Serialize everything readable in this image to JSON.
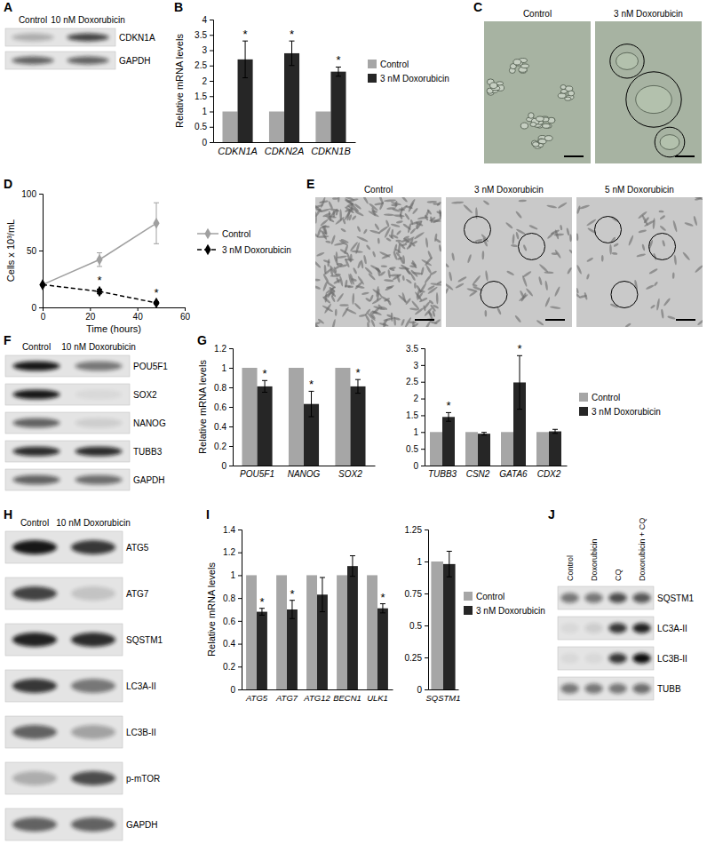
{
  "panel_letters": [
    "A",
    "B",
    "C",
    "D",
    "E",
    "F",
    "G",
    "H",
    "I",
    "J"
  ],
  "blots": {
    "A": {
      "columns": [
        "Control",
        "10 nM Doxorubicin"
      ],
      "rows": [
        {
          "label": "CDKN1A",
          "bands": [
            0.25,
            0.75
          ]
        },
        {
          "label": "GAPDH",
          "bands": [
            0.6,
            0.6
          ]
        }
      ]
    },
    "F": {
      "columns": [
        "Control",
        "10 nM Doxorubicin"
      ],
      "rows": [
        {
          "label": "POU5F1",
          "bands": [
            0.95,
            0.5
          ]
        },
        {
          "label": "SOX2",
          "bands": [
            0.95,
            0.05
          ]
        },
        {
          "label": "NANOG",
          "bands": [
            0.6,
            0.1
          ]
        },
        {
          "label": "TUBB3",
          "bands": [
            0.85,
            0.85
          ]
        },
        {
          "label": "GAPDH",
          "bands": [
            0.6,
            0.55
          ]
        }
      ]
    },
    "H": {
      "columns": [
        "Control",
        "10 nM Doxorubicin"
      ],
      "rows": [
        {
          "label": "ATG5",
          "bands": [
            0.95,
            0.8
          ]
        },
        {
          "label": "ATG7",
          "bands": [
            0.75,
            0.15
          ]
        },
        {
          "label": "SQSTM1",
          "bands": [
            0.9,
            0.85
          ]
        },
        {
          "label": "LC3A-II",
          "bands": [
            0.8,
            0.5
          ]
        },
        {
          "label": "LC3B-II",
          "bands": [
            0.6,
            0.3
          ]
        },
        {
          "label": "p-mTOR",
          "bands": [
            0.25,
            0.7
          ]
        },
        {
          "label": "GAPDH",
          "bands": [
            0.6,
            0.6
          ]
        }
      ]
    },
    "J": {
      "columns": [
        "Control",
        "Doxorubicin",
        "CQ",
        "Doxorubicin + CQ"
      ],
      "rows": [
        {
          "label": "SQSTM1",
          "bands": [
            0.5,
            0.5,
            0.7,
            0.65
          ]
        },
        {
          "label": "LC3A-II",
          "bands": [
            0.05,
            0.1,
            0.8,
            0.9
          ]
        },
        {
          "label": "LC3B-II",
          "bands": [
            0.05,
            0.05,
            0.8,
            1.0
          ]
        },
        {
          "label": "TUBB",
          "bands": [
            0.5,
            0.5,
            0.5,
            0.55
          ]
        }
      ]
    }
  },
  "micrographs": {
    "C": {
      "labels": [
        "Control",
        "3 nM Doxorubicin"
      ]
    },
    "E": {
      "labels": [
        "Control",
        "3 nM Doxorubicin",
        "5 nM Doxorubicin"
      ]
    }
  },
  "chart_data": [
    {
      "type": "bar",
      "ylabel": "Relative mRNA levels",
      "categories": [
        "CDKN1A",
        "CDKN2A",
        "CDKN1B"
      ],
      "series": [
        {
          "name": "Control",
          "color": "#a6a6a6",
          "values": [
            1,
            1,
            1
          ]
        },
        {
          "name": "3 nM Doxorubicin",
          "color": "#262626",
          "values": [
            2.7,
            2.9,
            2.3
          ],
          "errors": [
            0.6,
            0.4,
            0.15
          ],
          "annotations": [
            "*",
            "*",
            "*"
          ]
        }
      ],
      "ylim": [
        0,
        4
      ],
      "yticks": [
        0,
        0.5,
        1,
        1.5,
        2,
        2.5,
        3,
        3.5,
        4
      ],
      "legend": "right"
    },
    {
      "type": "line",
      "ylabel": "Cells x 10³/mL",
      "xlabel": "Time (hours)",
      "x": [
        0,
        24,
        48
      ],
      "xlim": [
        0,
        60
      ],
      "xticks": [
        0,
        20,
        40,
        60
      ],
      "ylim": [
        0,
        100
      ],
      "yticks": [
        0,
        50,
        100
      ],
      "series": [
        {
          "name": "Control",
          "color": "#a0a0a0",
          "marker": "diamond",
          "line_style": "solid",
          "values": [
            20,
            42,
            74
          ],
          "errors": [
            null,
            6,
            18
          ]
        },
        {
          "name": "3 nM Doxorubicin",
          "color": "#000000",
          "marker": "diamond",
          "line_style": "dashed",
          "values": [
            20,
            14,
            4
          ],
          "errors": [
            null,
            2,
            1
          ],
          "annotations": [
            null,
            "*",
            "*"
          ]
        }
      ],
      "legend": "right"
    },
    {
      "type": "bar",
      "ylabel": "Relative mRNA levels",
      "categories": [
        "POU5F1",
        "NANOG",
        "SOX2"
      ],
      "series": [
        {
          "color": "#a6a6a6",
          "values": [
            1,
            1,
            1
          ]
        },
        {
          "color": "#262626",
          "values": [
            0.81,
            0.63,
            0.81
          ],
          "errors": [
            0.06,
            0.13,
            0.07
          ],
          "annotations": [
            "*",
            "*",
            "*"
          ]
        }
      ],
      "ylim": [
        0,
        1.2
      ],
      "yticks": [
        0,
        0.2,
        0.4,
        0.6,
        0.8,
        1,
        1.2
      ]
    },
    {
      "type": "bar",
      "categories": [
        "TUBB3",
        "CSN2",
        "GATA6",
        "CDX2"
      ],
      "series": [
        {
          "name": "Control",
          "color": "#a6a6a6",
          "values": [
            1,
            1,
            1,
            1
          ]
        },
        {
          "name": "3 nM Doxorubicin",
          "color": "#262626",
          "values": [
            1.45,
            0.95,
            2.48,
            1.02
          ],
          "errors": [
            0.13,
            0.04,
            0.8,
            0.06
          ],
          "annotations": [
            "*",
            null,
            "*",
            null
          ]
        }
      ],
      "ylim": [
        0,
        3.5
      ],
      "yticks": [
        0,
        0.5,
        1,
        1.5,
        2,
        2.5,
        3,
        3.5
      ],
      "legend": "right"
    },
    {
      "type": "bar",
      "ylabel": "Relative mRNA levels",
      "categories": [
        "ATG5",
        "ATG7",
        "ATG12",
        "BECN1",
        "ULK1"
      ],
      "series": [
        {
          "color": "#a6a6a6",
          "values": [
            1,
            1,
            1,
            1,
            1
          ]
        },
        {
          "color": "#262626",
          "values": [
            0.68,
            0.7,
            0.83,
            1.08,
            0.71
          ],
          "errors": [
            0.03,
            0.08,
            0.15,
            0.09,
            0.04
          ],
          "annotations": [
            "*",
            "*",
            null,
            null,
            "*"
          ]
        }
      ],
      "ylim": [
        0,
        1.4
      ],
      "yticks": [
        0,
        0.2,
        0.4,
        0.6,
        0.8,
        1,
        1.2,
        1.4
      ]
    },
    {
      "type": "bar",
      "categories": [
        "SQSTM1"
      ],
      "series": [
        {
          "name": "Control",
          "color": "#a6a6a6",
          "values": [
            1
          ]
        },
        {
          "name": "3 nM Doxorubicin",
          "color": "#262626",
          "values": [
            0.98
          ],
          "errors": [
            0.1
          ]
        }
      ],
      "ylim": [
        0,
        1.25
      ],
      "yticks": [
        0,
        0.25,
        0.5,
        0.75,
        1,
        1.25
      ],
      "legend": "right"
    }
  ]
}
